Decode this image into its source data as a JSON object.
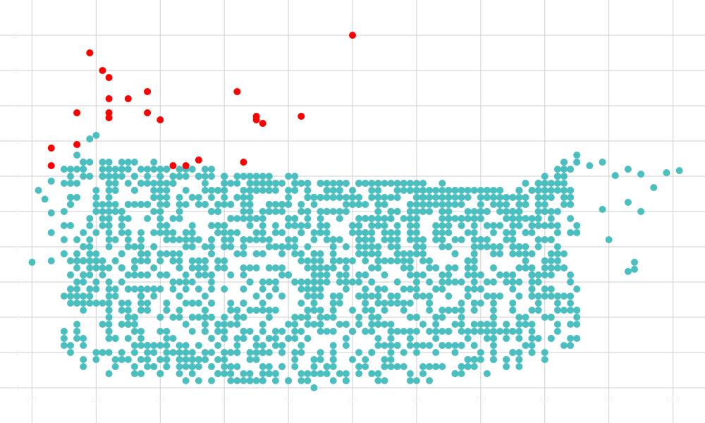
{
  "chart_data": {
    "type": "scatter",
    "title": "",
    "xlabel": "",
    "ylabel": "",
    "xlim": [
      0,
      11
    ],
    "ylim": [
      0,
      12
    ],
    "grid": true,
    "legend": "none",
    "colors": {
      "normal": "#4bbfbf",
      "outlier": "#ff0000",
      "grid": "#d6d6d6",
      "background": "#ffffff"
    },
    "x_ticks": [
      0.5,
      1.5,
      2.5,
      3.5,
      4.5,
      5.5,
      6.5,
      7.5,
      8.5,
      9.5,
      10.5
    ],
    "y_ticks": [
      1,
      2,
      3,
      4,
      5,
      6,
      7,
      8,
      9,
      10,
      11
    ],
    "series": [
      {
        "points": [],
        "sampled_cloud": {
          "count": 1800,
          "x_range": [
            1.0,
            9.0
          ],
          "y_lower_edge": [
            [
              1.0,
              2.0
            ],
            [
              1.3,
              1.5
            ],
            [
              2.0,
              1.3
            ],
            [
              3.0,
              1.2
            ],
            [
              4.0,
              1.1
            ],
            [
              5.0,
              1.0
            ],
            [
              6.0,
              1.1
            ],
            [
              7.0,
              1.3
            ],
            [
              8.0,
              1.4
            ],
            [
              9.0,
              2.2
            ]
          ],
          "y_upper_edge": [
            [
              1.0,
              7.6
            ],
            [
              2.0,
              7.4
            ],
            [
              3.0,
              7.2
            ],
            [
              4.0,
              7.0
            ],
            [
              5.0,
              6.9
            ],
            [
              6.0,
              6.8
            ],
            [
              7.0,
              6.7
            ],
            [
              8.0,
              6.6
            ],
            [
              9.0,
              7.6
            ]
          ]
        },
        "extra_points": [
          [
            0.5,
            4.56
          ],
          [
            0.8,
            4.6
          ],
          [
            0.8,
            5.4
          ],
          [
            0.8,
            5.96
          ],
          [
            0.8,
            6.86
          ],
          [
            0.7,
            6.35
          ],
          [
            0.6,
            6.6
          ],
          [
            1.5,
            8.16
          ],
          [
            1.4,
            8.06
          ],
          [
            9.2,
            7.3
          ],
          [
            9.4,
            7.4
          ],
          [
            9.6,
            7.02
          ],
          [
            9.8,
            7.2
          ],
          [
            10.0,
            7.06
          ],
          [
            10.2,
            6.68
          ],
          [
            10.4,
            7.1
          ],
          [
            10.6,
            7.16
          ],
          [
            10.0,
            6.0
          ],
          [
            9.8,
            6.26
          ],
          [
            9.9,
            4.36
          ],
          [
            9.8,
            4.3
          ],
          [
            9.9,
            4.56
          ],
          [
            9.5,
            5.2
          ],
          [
            9.4,
            6.06
          ]
        ]
      },
      {
        "points": [
          [
            0.8,
            7.3
          ],
          [
            0.8,
            7.8
          ],
          [
            1.2,
            7.9
          ],
          [
            1.2,
            8.8
          ],
          [
            1.4,
            10.5
          ],
          [
            1.6,
            10.0
          ],
          [
            1.7,
            9.8
          ],
          [
            1.7,
            9.2
          ],
          [
            1.7,
            8.8
          ],
          [
            1.7,
            8.66
          ],
          [
            2.0,
            9.2
          ],
          [
            2.3,
            9.4
          ],
          [
            2.3,
            8.8
          ],
          [
            2.5,
            8.6
          ],
          [
            2.7,
            7.3
          ],
          [
            2.9,
            7.3
          ],
          [
            3.1,
            7.46
          ],
          [
            3.7,
            9.4
          ],
          [
            3.8,
            7.4
          ],
          [
            4.0,
            8.6
          ],
          [
            4.0,
            8.7
          ],
          [
            4.1,
            8.5
          ],
          [
            4.7,
            8.7
          ],
          [
            5.5,
            11.0
          ]
        ]
      }
    ]
  }
}
